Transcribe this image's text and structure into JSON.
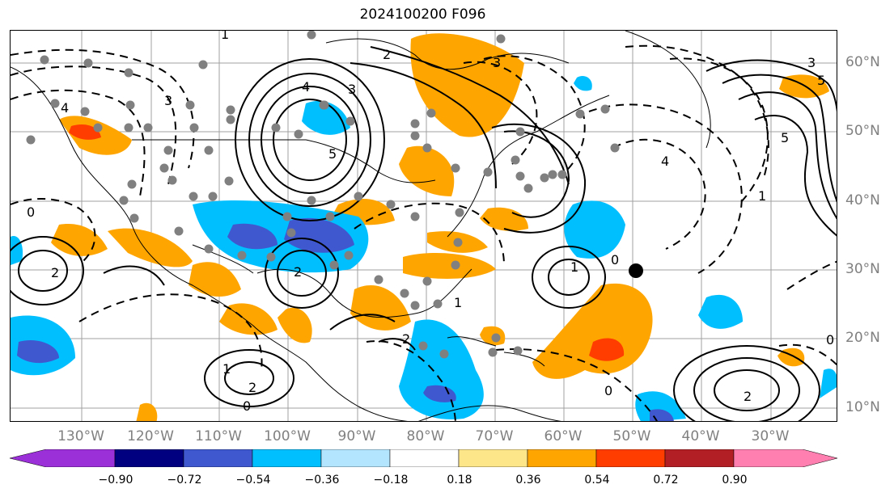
{
  "title": "2024100200 F096",
  "map": {
    "lon_labels": [
      "130°W",
      "120°W",
      "110°W",
      "100°W",
      "90°W",
      "80°W",
      "70°W",
      "60°W",
      "50°W",
      "40°W",
      "30°W"
    ],
    "lat_labels": [
      "60°N",
      "50°N",
      "40°N",
      "30°N",
      "20°N",
      "10°N"
    ],
    "contour_labels": [
      "2",
      "3",
      "4",
      "5",
      "0",
      "1",
      "2",
      "3",
      "4",
      "5",
      "0",
      "1",
      "2",
      "0",
      "1",
      "2",
      "3",
      "4",
      "5",
      "0",
      "1",
      "2",
      "3",
      "0",
      "1",
      "2"
    ],
    "colors": {
      "very_negative": "#3f58cf",
      "negative": "#00bfff",
      "light_negative": "#b3e5ff",
      "neutral": "#ffffff",
      "light_positive": "#fde68a",
      "positive": "#ffa500",
      "strong_positive": "#ff3d00",
      "very_strong_positive": "#b21f24",
      "extreme_positive": "#ff7fb0",
      "extreme_negative": "#9b30d9",
      "deep_negative": "#000080"
    }
  },
  "colorbar": {
    "labels": [
      "−0.90",
      "−0.72",
      "−0.54",
      "−0.36",
      "−0.18",
      "0.18",
      "0.36",
      "0.54",
      "0.72",
      "0.90"
    ],
    "colors": [
      "#9b30d9",
      "#000080",
      "#3f58cf",
      "#00bfff",
      "#b3e5ff",
      "#ffffff",
      "#fde68a",
      "#ffa500",
      "#ff3d00",
      "#b21f24",
      "#ff7fb0"
    ]
  }
}
